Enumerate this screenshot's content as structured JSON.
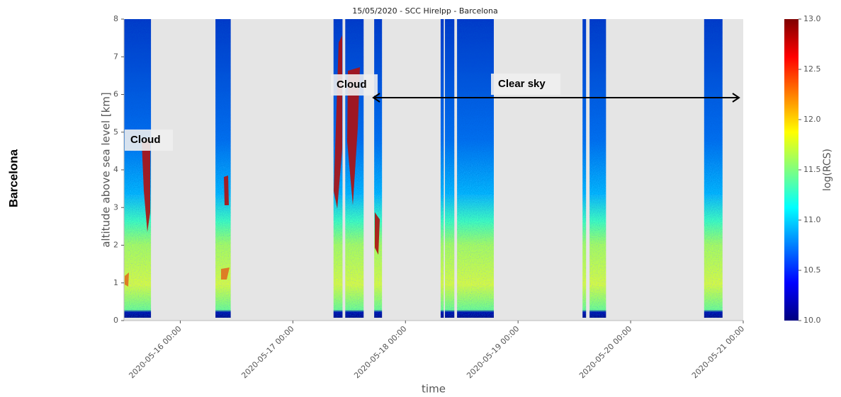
{
  "chart_data": {
    "type": "heatmap",
    "title": "15/05/2020 - SCC Hirelpp - Barcelona",
    "row_label": "Barcelona",
    "xlabel": "time",
    "ylabel": "altitude above sea level [km]",
    "colorbar_label": "log(RCS)",
    "xlim": [
      "2020-05-15 12:00",
      "2020-05-21 00:00"
    ],
    "xticks": [
      "2020-05-16 00:00",
      "2020-05-17 00:00",
      "2020-05-18 00:00",
      "2020-05-19 00:00",
      "2020-05-20 00:00",
      "2020-05-21 00:00"
    ],
    "ylim": [
      0,
      8
    ],
    "yticks": [
      0,
      1,
      2,
      3,
      4,
      5,
      6,
      7,
      8
    ],
    "clim": [
      10,
      13
    ],
    "cticks": [
      {
        "value": 10,
        "label": "10.0"
      },
      10.5,
      {
        "value": 11,
        "label": "11.0"
      },
      11.5,
      {
        "value": 12,
        "label": "12.0"
      },
      12.5,
      {
        "value": 13,
        "label": "13.0"
      }
    ],
    "periods": [
      {
        "start": "2020-05-15 12:00",
        "end": "2020-05-15 17:45"
      },
      {
        "start": "2020-05-16 07:30",
        "end": "2020-05-16 10:45"
      },
      {
        "start": "2020-05-17 08:40",
        "end": "2020-05-17 10:35"
      },
      {
        "start": "2020-05-17 11:10",
        "end": "2020-05-17 15:05"
      },
      {
        "start": "2020-05-17 17:20",
        "end": "2020-05-17 19:00"
      },
      {
        "start": "2020-05-18 07:30",
        "end": "2020-05-18 08:10"
      },
      {
        "start": "2020-05-18 08:25",
        "end": "2020-05-18 10:25"
      },
      {
        "start": "2020-05-18 11:00",
        "end": "2020-05-18 18:50"
      },
      {
        "start": "2020-05-19 13:45",
        "end": "2020-05-19 14:30"
      },
      {
        "start": "2020-05-19 15:15",
        "end": "2020-05-19 18:45"
      },
      {
        "start": "2020-05-20 15:40",
        "end": "2020-05-20 19:35"
      }
    ],
    "annotations": [
      "Cloud",
      "Cloud",
      "Clear sky"
    ]
  }
}
